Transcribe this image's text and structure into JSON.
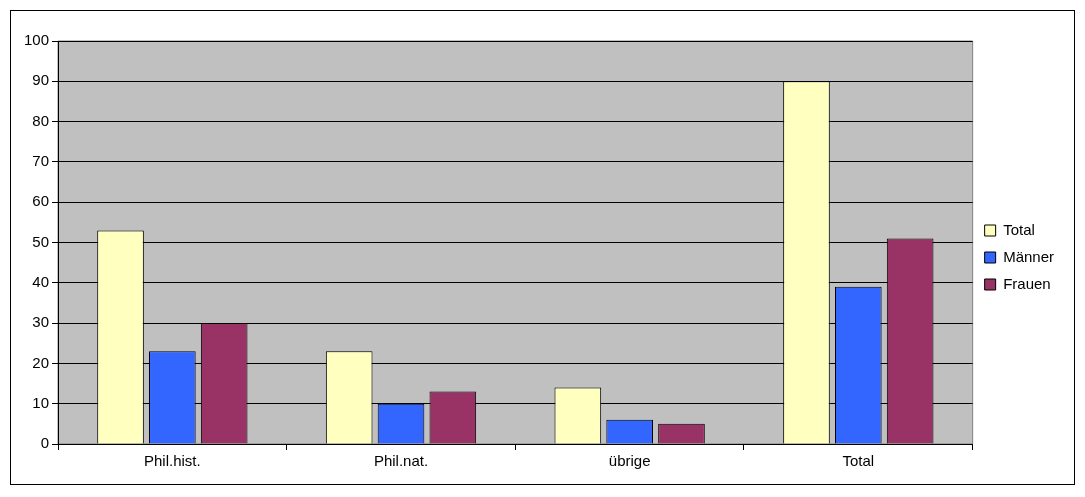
{
  "chart_data": {
    "type": "bar",
    "categories": [
      "Phil.hist.",
      "Phil.nat.",
      "übrige",
      "Total"
    ],
    "series": [
      {
        "name": "Total",
        "color": "#ffffc0",
        "values": [
          53,
          23,
          14,
          90
        ]
      },
      {
        "name": "Männer",
        "color": "#3366ff",
        "values": [
          23,
          10,
          6,
          39
        ]
      },
      {
        "name": "Frauen",
        "color": "#993366",
        "values": [
          30,
          13,
          5,
          51
        ]
      }
    ],
    "ylim": [
      0,
      100
    ],
    "yticks": [
      0,
      10,
      20,
      30,
      40,
      50,
      60,
      70,
      80,
      90,
      100
    ],
    "grid": "y",
    "legend": "right"
  }
}
